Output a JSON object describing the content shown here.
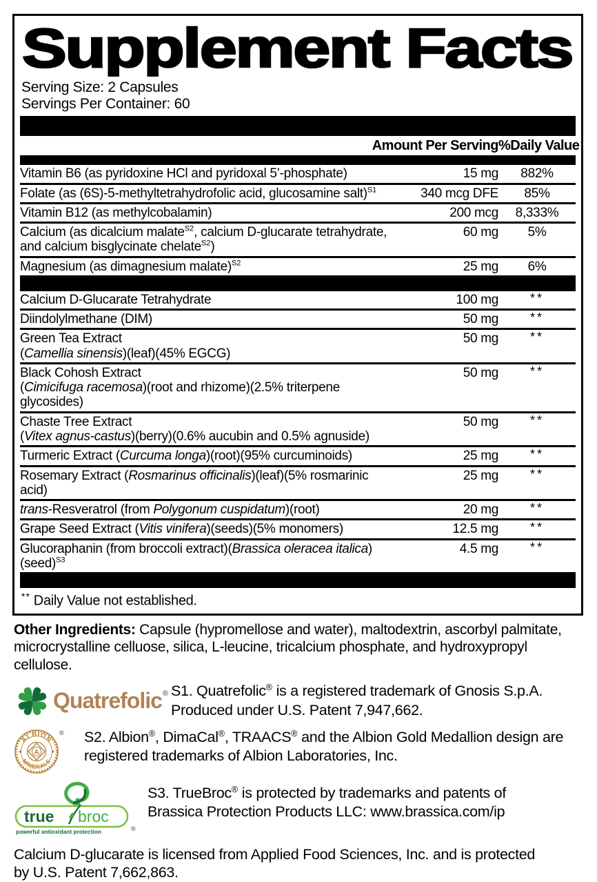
{
  "colors": {
    "clover_light": "#2f9e45",
    "clover_dark": "#0f6c38",
    "quatrefolic_text": "#b08355",
    "albion_gold": "#b5812f",
    "truebroc_dark": "#1a6b35",
    "truebroc_mid": "#3fae49",
    "truebroc_border": "#7cc142"
  },
  "title": "Supplement Facts",
  "serving": {
    "size": "Serving Size: 2 Capsules",
    "per_container": "Servings Per Container: 60"
  },
  "table": {
    "header": {
      "amount": "Amount Per Serving",
      "dv": "%Daily Value"
    },
    "sections": [
      {
        "rows": [
          {
            "name": [
              {
                "t": "Vitamin B6 (as pyridoxine HCl and pyridoxal 5’-phosphate)"
              }
            ],
            "amount": "15 mg",
            "dv": "882%"
          },
          {
            "name": [
              {
                "t": "Folate (as (6S)-5-methyltetrahydrofolic acid, glucosamine salt)"
              },
              {
                "t": "S1",
                "sup": true
              }
            ],
            "amount": "340 mcg DFE",
            "dv": "85%"
          },
          {
            "name": [
              {
                "t": "Vitamin B12 (as methylcobalamin)"
              }
            ],
            "amount": "200 mcg",
            "dv": "8,333%"
          },
          {
            "name": [
              {
                "t": "Calcium (as dicalcium malate"
              },
              {
                "t": "S2",
                "sup": true
              },
              {
                "t": ", calcium D-glucarate tetrahydrate,"
              },
              {
                "br": true
              },
              {
                "t": "and calcium bisglycinate chelate"
              },
              {
                "t": "S2",
                "sup": true
              },
              {
                "t": ")"
              }
            ],
            "amount": "60 mg",
            "dv": "5%"
          },
          {
            "name": [
              {
                "t": "Magnesium (as dimagnesium malate)"
              },
              {
                "t": "S2",
                "sup": true
              }
            ],
            "amount": "25 mg",
            "dv": "6%"
          }
        ]
      },
      {
        "rows": [
          {
            "name": [
              {
                "t": "Calcium D-Glucarate Tetrahydrate"
              }
            ],
            "amount": "100 mg",
            "dv": "**"
          },
          {
            "name": [
              {
                "t": "Diindolylmethane (DIM)"
              }
            ],
            "amount": "50 mg",
            "dv": "**"
          },
          {
            "name": [
              {
                "t": "Green Tea Extract"
              },
              {
                "br": true
              },
              {
                "t": "("
              },
              {
                "t": "Camellia sinensis",
                "i": true
              },
              {
                "t": ")(leaf)(45% EGCG)"
              }
            ],
            "amount": "50 mg",
            "dv": "**"
          },
          {
            "name": [
              {
                "t": "Black Cohosh Extract"
              },
              {
                "br": true
              },
              {
                "t": "("
              },
              {
                "t": "Cimicifuga racemosa",
                "i": true
              },
              {
                "t": ")(root and rhizome)(2.5% triterpene glycosides)"
              }
            ],
            "amount": "50 mg",
            "dv": "**"
          },
          {
            "name": [
              {
                "t": "Chaste Tree Extract"
              },
              {
                "br": true
              },
              {
                "t": "("
              },
              {
                "t": "Vitex agnus-castus",
                "i": true
              },
              {
                "t": ")(berry)(0.6% aucubin and 0.5% agnuside)"
              }
            ],
            "amount": "50 mg",
            "dv": "**"
          },
          {
            "name": [
              {
                "t": "Turmeric Extract ("
              },
              {
                "t": "Curcuma longa",
                "i": true
              },
              {
                "t": ")(root)(95% curcuminoids)"
              }
            ],
            "amount": "25 mg",
            "dv": "**"
          },
          {
            "name": [
              {
                "t": "Rosemary Extract ("
              },
              {
                "t": "Rosmarinus officinalis",
                "i": true
              },
              {
                "t": ")(leaf)(5% rosmarinic acid)"
              }
            ],
            "amount": "25 mg",
            "dv": "**"
          },
          {
            "name": [
              {
                "t": "trans",
                "i": true
              },
              {
                "t": "-Resveratrol (from "
              },
              {
                "t": "Polygonum cuspidatum",
                "i": true
              },
              {
                "t": ")(root)"
              }
            ],
            "amount": "20 mg",
            "dv": "**"
          },
          {
            "name": [
              {
                "t": "Grape Seed Extract ("
              },
              {
                "t": "Vitis vinifera",
                "i": true
              },
              {
                "t": ")(seeds)(5% monomers)"
              }
            ],
            "amount": "12.5 mg",
            "dv": "**"
          },
          {
            "name": [
              {
                "t": "Glucoraphanin (from broccoli extract)("
              },
              {
                "t": "Brassica oleracea italica",
                "i": true
              },
              {
                "t": ")(seed)"
              },
              {
                "t": "S3",
                "sup": true
              }
            ],
            "amount": "4.5 mg",
            "dv": "**"
          }
        ]
      }
    ],
    "footnote": [
      {
        "t": "** ",
        "fn": true
      },
      {
        "t": "Daily Value not established."
      }
    ]
  },
  "other_ingredients": {
    "label": "Other Ingredients:",
    "text": " Capsule (hypromellose and water), maltodextrin, ascorbyl palmitate, microcrystalline celluose, silica, L-leucine, tricalcium phosphate, and hydroxypropyl cellulose."
  },
  "trademark_notes": [
    {
      "id": "quatrefolic",
      "lines": [
        [
          {
            "t": "S1. Quatrefolic"
          },
          {
            "t": "®",
            "sup": true
          },
          {
            "t": " is a registered trademark of Gnosis S.p.A."
          }
        ],
        [
          {
            "t": "Produced under U.S. Patent 7,947,662."
          }
        ]
      ]
    },
    {
      "id": "albion",
      "lines": [
        [
          {
            "t": "S2. Albion"
          },
          {
            "t": "®",
            "sup": true
          },
          {
            "t": ", DimaCal"
          },
          {
            "t": "®",
            "sup": true
          },
          {
            "t": ", TRAACS"
          },
          {
            "t": "®",
            "sup": true
          },
          {
            "t": " and the Albion Gold Medallion design are"
          }
        ],
        [
          {
            "t": "registered trademarks of Albion Laboratories, Inc."
          }
        ]
      ]
    },
    {
      "id": "truebroc",
      "lines": [
        [
          {
            "t": "S3. TrueBroc"
          },
          {
            "t": "®",
            "sup": true
          },
          {
            "t": " is protected by trademarks and patents of"
          }
        ],
        [
          {
            "t": "Brassica Protection Products LLC: www.brassica.com/ip"
          }
        ]
      ]
    }
  ],
  "license_note": {
    "lines": [
      "Calcium D-glucarate is licensed from Applied Food Sciences, Inc. and is protected",
      "by U.S. Patent 7,662,863."
    ]
  },
  "logos": {
    "quatrefolic": {
      "wordmark": "Quatrefolic",
      "reg": "®"
    },
    "albion": {
      "arc_top": "ALBION",
      "arc_bottom": "MINERALS",
      "center_letter": "A",
      "reg": "®"
    },
    "truebroc": {
      "word_true": "true",
      "word_broc": "broc",
      "tagline": "powerful antioxidant protection",
      "reg": "®"
    }
  }
}
